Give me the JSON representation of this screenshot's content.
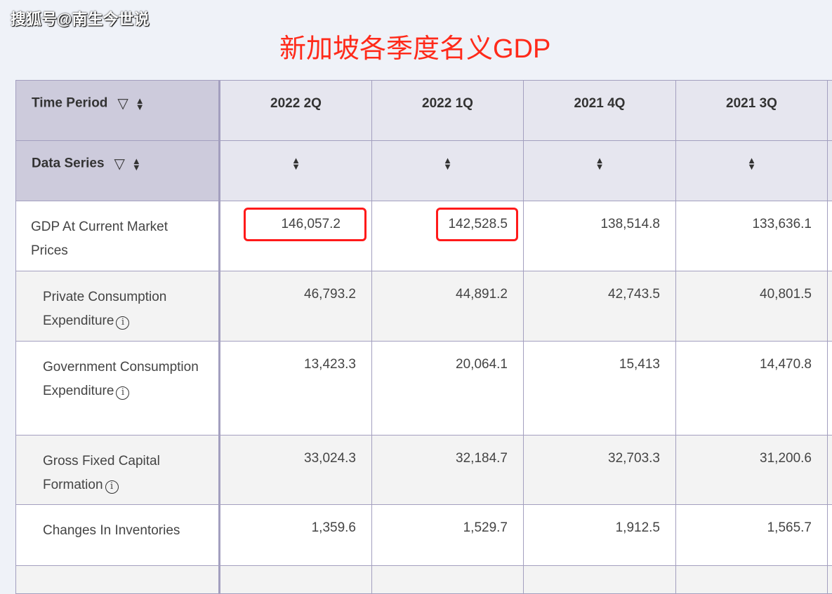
{
  "watermark": "搜狐号@南生今世说",
  "title": "新加坡各季度名义GDP",
  "header": {
    "time_period": "Time Period",
    "data_series": "Data Series",
    "columns": [
      "2022 2Q",
      "2022 1Q",
      "2021 4Q",
      "2021 3Q"
    ]
  },
  "rows": [
    {
      "label": "GDP At Current Market Prices",
      "values": [
        "146,057.2",
        "142,528.5",
        "138,514.8",
        "133,636.1"
      ],
      "info": false
    },
    {
      "label": "Private Consumption Expenditure",
      "values": [
        "46,793.2",
        "44,891.2",
        "42,743.5",
        "40,801.5"
      ],
      "info": true
    },
    {
      "label": "Government Consumption Expenditure",
      "values": [
        "13,423.3",
        "20,064.1",
        "15,413",
        "14,470.8"
      ],
      "info": true
    },
    {
      "label": "Gross Fixed Capital Formation",
      "values": [
        "33,024.3",
        "32,184.7",
        "32,703.3",
        "31,200.6"
      ],
      "info": true
    },
    {
      "label": "Changes In Inventories",
      "values": [
        "1,359.6",
        "1,529.7",
        "1,912.5",
        "1,565.7"
      ],
      "info": false
    }
  ],
  "highlight_color": "#ff1a1a"
}
